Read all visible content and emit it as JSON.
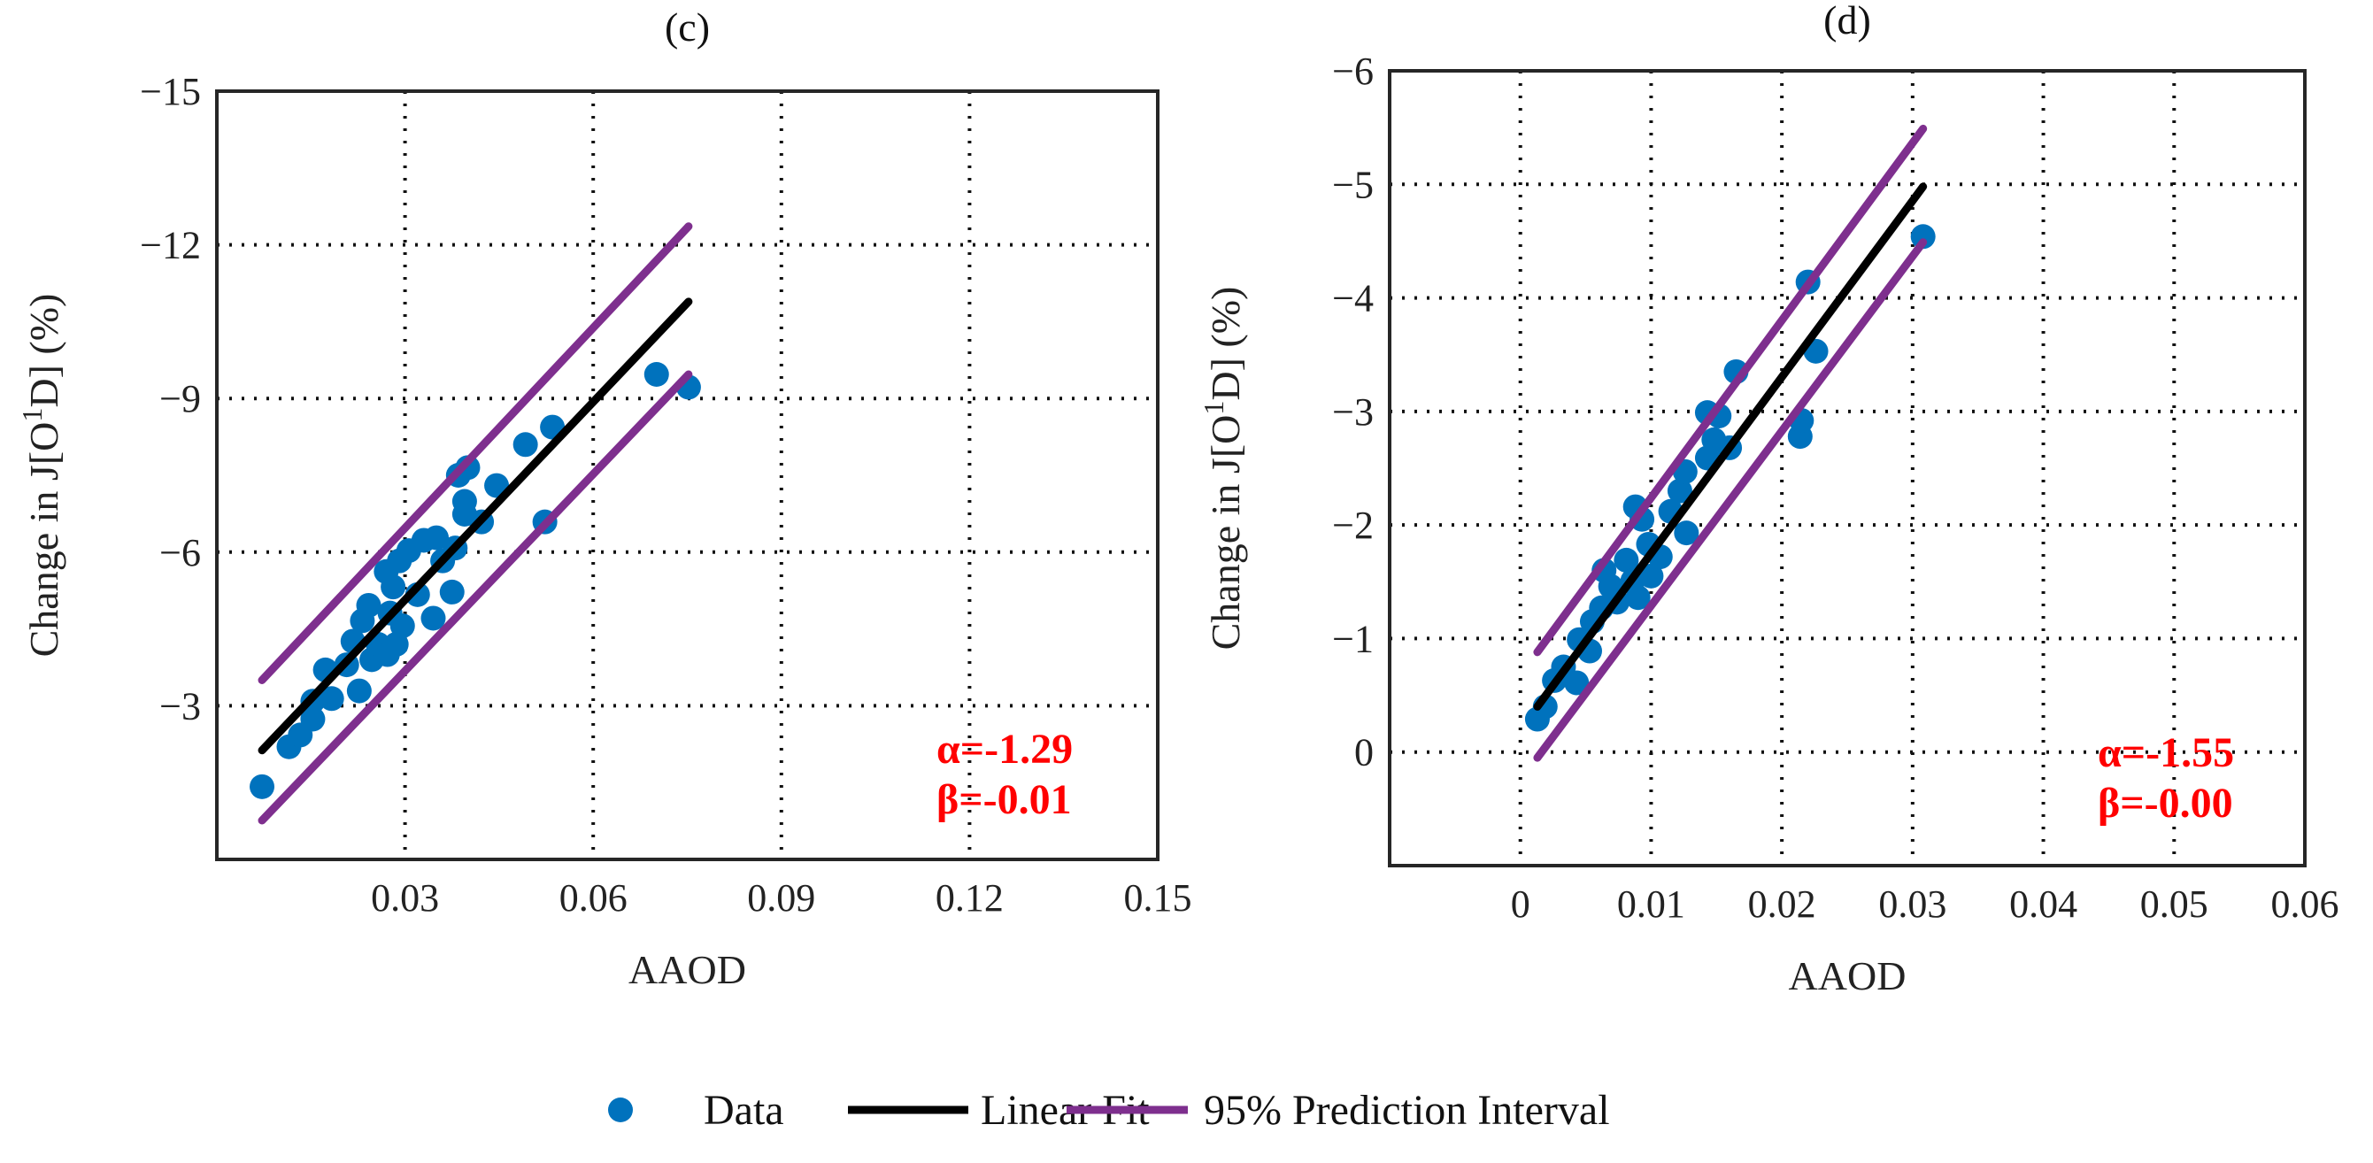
{
  "chart_data": [
    {
      "type": "scatter",
      "title": "(c)",
      "xlabel": "AAOD",
      "ylabel": "Change in J[O¹D] (%)",
      "ylabel_main": "Change in J[O",
      "ylabel_sup": "1",
      "ylabel_end": "D] (%)",
      "xlim": [
        0,
        0.15
      ],
      "ylim": [
        0,
        -15
      ],
      "y_reversed": true,
      "grid": true,
      "xticks": [
        0.03,
        0.06,
        0.09,
        0.12,
        0.15
      ],
      "xtick_labels": [
        "0.03",
        "0.06",
        "0.09",
        "0.12",
        "0.15"
      ],
      "yticks": [
        -15,
        -12,
        -9,
        -6,
        -3
      ],
      "ytick_labels": [
        "−15",
        "−12",
        "−9",
        "−6",
        "−3"
      ],
      "annotation": [
        "α=-1.29",
        "β=-0.01"
      ],
      "series": [
        {
          "name": "Data",
          "kind": "points",
          "points": [
            [
              0.0072,
              -1.42
            ],
            [
              0.0115,
              -2.2
            ],
            [
              0.0133,
              -2.43
            ],
            [
              0.0153,
              -2.74
            ],
            [
              0.0153,
              -3.09
            ],
            [
              0.0173,
              -3.7
            ],
            [
              0.0183,
              -3.14
            ],
            [
              0.0207,
              -3.8
            ],
            [
              0.0217,
              -4.26
            ],
            [
              0.0227,
              -3.29
            ],
            [
              0.0232,
              -4.66
            ],
            [
              0.0242,
              -4.96
            ],
            [
              0.0247,
              -3.9
            ],
            [
              0.0257,
              -4.2
            ],
            [
              0.0272,
              -4.0
            ],
            [
              0.0276,
              -4.81
            ],
            [
              0.0286,
              -4.2
            ],
            [
              0.0296,
              -4.56
            ],
            [
              0.027,
              -5.62
            ],
            [
              0.0281,
              -5.32
            ],
            [
              0.0291,
              -5.83
            ],
            [
              0.0306,
              -6.03
            ],
            [
              0.032,
              -5.17
            ],
            [
              0.033,
              -6.23
            ],
            [
              0.0345,
              -4.71
            ],
            [
              0.035,
              -6.28
            ],
            [
              0.036,
              -5.83
            ],
            [
              0.0375,
              -5.22
            ],
            [
              0.038,
              -6.08
            ],
            [
              0.0385,
              -7.5
            ],
            [
              0.0395,
              -6.99
            ],
            [
              0.0395,
              -6.74
            ],
            [
              0.04,
              -7.65
            ],
            [
              0.0422,
              -6.59
            ],
            [
              0.0446,
              -7.3
            ],
            [
              0.0492,
              -8.1
            ],
            [
              0.0523,
              -6.59
            ],
            [
              0.0535,
              -8.44
            ],
            [
              0.0701,
              -9.47
            ],
            [
              0.0752,
              -9.22
            ]
          ]
        },
        {
          "name": "Linear Fit",
          "kind": "line",
          "points": [
            [
              0.0072,
              -2.13
            ],
            [
              0.0752,
              -10.89
            ]
          ]
        },
        {
          "name": "95% Prediction Interval (upper)",
          "kind": "line",
          "points": [
            [
              0.0072,
              -3.5
            ],
            [
              0.0752,
              -12.36
            ]
          ]
        },
        {
          "name": "95% Prediction Interval (lower)",
          "kind": "line",
          "points": [
            [
              0.0072,
              -0.76
            ],
            [
              0.0752,
              -9.47
            ]
          ]
        }
      ]
    },
    {
      "type": "scatter",
      "title": "(d)",
      "xlabel": "AAOD",
      "ylabel": "Change in J[O¹D] (%)",
      "ylabel_main": "Change in J[O",
      "ylabel_sup": "1",
      "ylabel_end": "D] (%)",
      "xlim": [
        -0.01,
        0.06
      ],
      "ylim": [
        1,
        -6
      ],
      "y_reversed": true,
      "grid": true,
      "xticks": [
        0,
        0.01,
        0.02,
        0.03,
        0.04,
        0.05,
        0.06
      ],
      "xtick_labels": [
        "0",
        "0.01",
        "0.02",
        "0.03",
        "0.04",
        "0.05",
        "0.06"
      ],
      "yticks": [
        -6,
        -5,
        -4,
        -3,
        -2,
        -1,
        0
      ],
      "ytick_labels": [
        "−6",
        "−5",
        "−4",
        "−3",
        "−2",
        "−1",
        "0"
      ],
      "annotation": [
        "α=-1.55",
        "β=-0.00"
      ],
      "series": [
        {
          "name": "Data",
          "kind": "points",
          "points": [
            [
              0.0013,
              -0.29
            ],
            [
              0.0019,
              -0.4
            ],
            [
              0.0026,
              -0.63
            ],
            [
              0.0033,
              -0.75
            ],
            [
              0.0043,
              -0.61
            ],
            [
              0.0045,
              -0.99
            ],
            [
              0.0053,
              -0.89
            ],
            [
              0.0055,
              -1.15
            ],
            [
              0.0062,
              -1.27
            ],
            [
              0.0064,
              -1.6
            ],
            [
              0.0069,
              -1.46
            ],
            [
              0.0074,
              -1.32
            ],
            [
              0.0081,
              -1.69
            ],
            [
              0.0086,
              -1.51
            ],
            [
              0.0088,
              -2.16
            ],
            [
              0.009,
              -1.36
            ],
            [
              0.0093,
              -2.05
            ],
            [
              0.0098,
              -1.83
            ],
            [
              0.01,
              -1.55
            ],
            [
              0.0107,
              -1.72
            ],
            [
              0.0115,
              -2.12
            ],
            [
              0.0122,
              -2.3
            ],
            [
              0.0127,
              -1.93
            ],
            [
              0.0126,
              -2.47
            ],
            [
              0.0143,
              -2.99
            ],
            [
              0.0143,
              -2.59
            ],
            [
              0.0148,
              -2.75
            ],
            [
              0.0152,
              -2.96
            ],
            [
              0.016,
              -2.68
            ],
            [
              0.0165,
              -3.35
            ],
            [
              0.0214,
              -2.78
            ],
            [
              0.0215,
              -2.92
            ],
            [
              0.022,
              -4.14
            ],
            [
              0.0226,
              -3.53
            ],
            [
              0.0308,
              -4.54
            ]
          ]
        },
        {
          "name": "Linear Fit",
          "kind": "line",
          "points": [
            [
              0.0013,
              -0.4
            ],
            [
              0.0308,
              -4.98
            ]
          ]
        },
        {
          "name": "95% Prediction Interval (upper)",
          "kind": "line",
          "points": [
            [
              0.0013,
              -0.88
            ],
            [
              0.0308,
              -5.49
            ]
          ]
        },
        {
          "name": "95% Prediction Interval (lower)",
          "kind": "line",
          "points": [
            [
              0.0013,
              0.05
            ],
            [
              0.0308,
              -4.49
            ]
          ]
        }
      ]
    }
  ],
  "legend": {
    "placement": "bottom-center",
    "items": [
      {
        "label": "Data",
        "kind": "marker",
        "color": "#0072bd"
      },
      {
        "label": "Linear Fit",
        "kind": "line",
        "color": "#000000"
      },
      {
        "label": "95% Prediction Interval",
        "kind": "line",
        "color": "#7e2f8e"
      }
    ]
  },
  "colors": {
    "data": "#0072bd",
    "fit": "#000000",
    "interval": "#7e2f8e",
    "annotation": "#ff0000"
  }
}
